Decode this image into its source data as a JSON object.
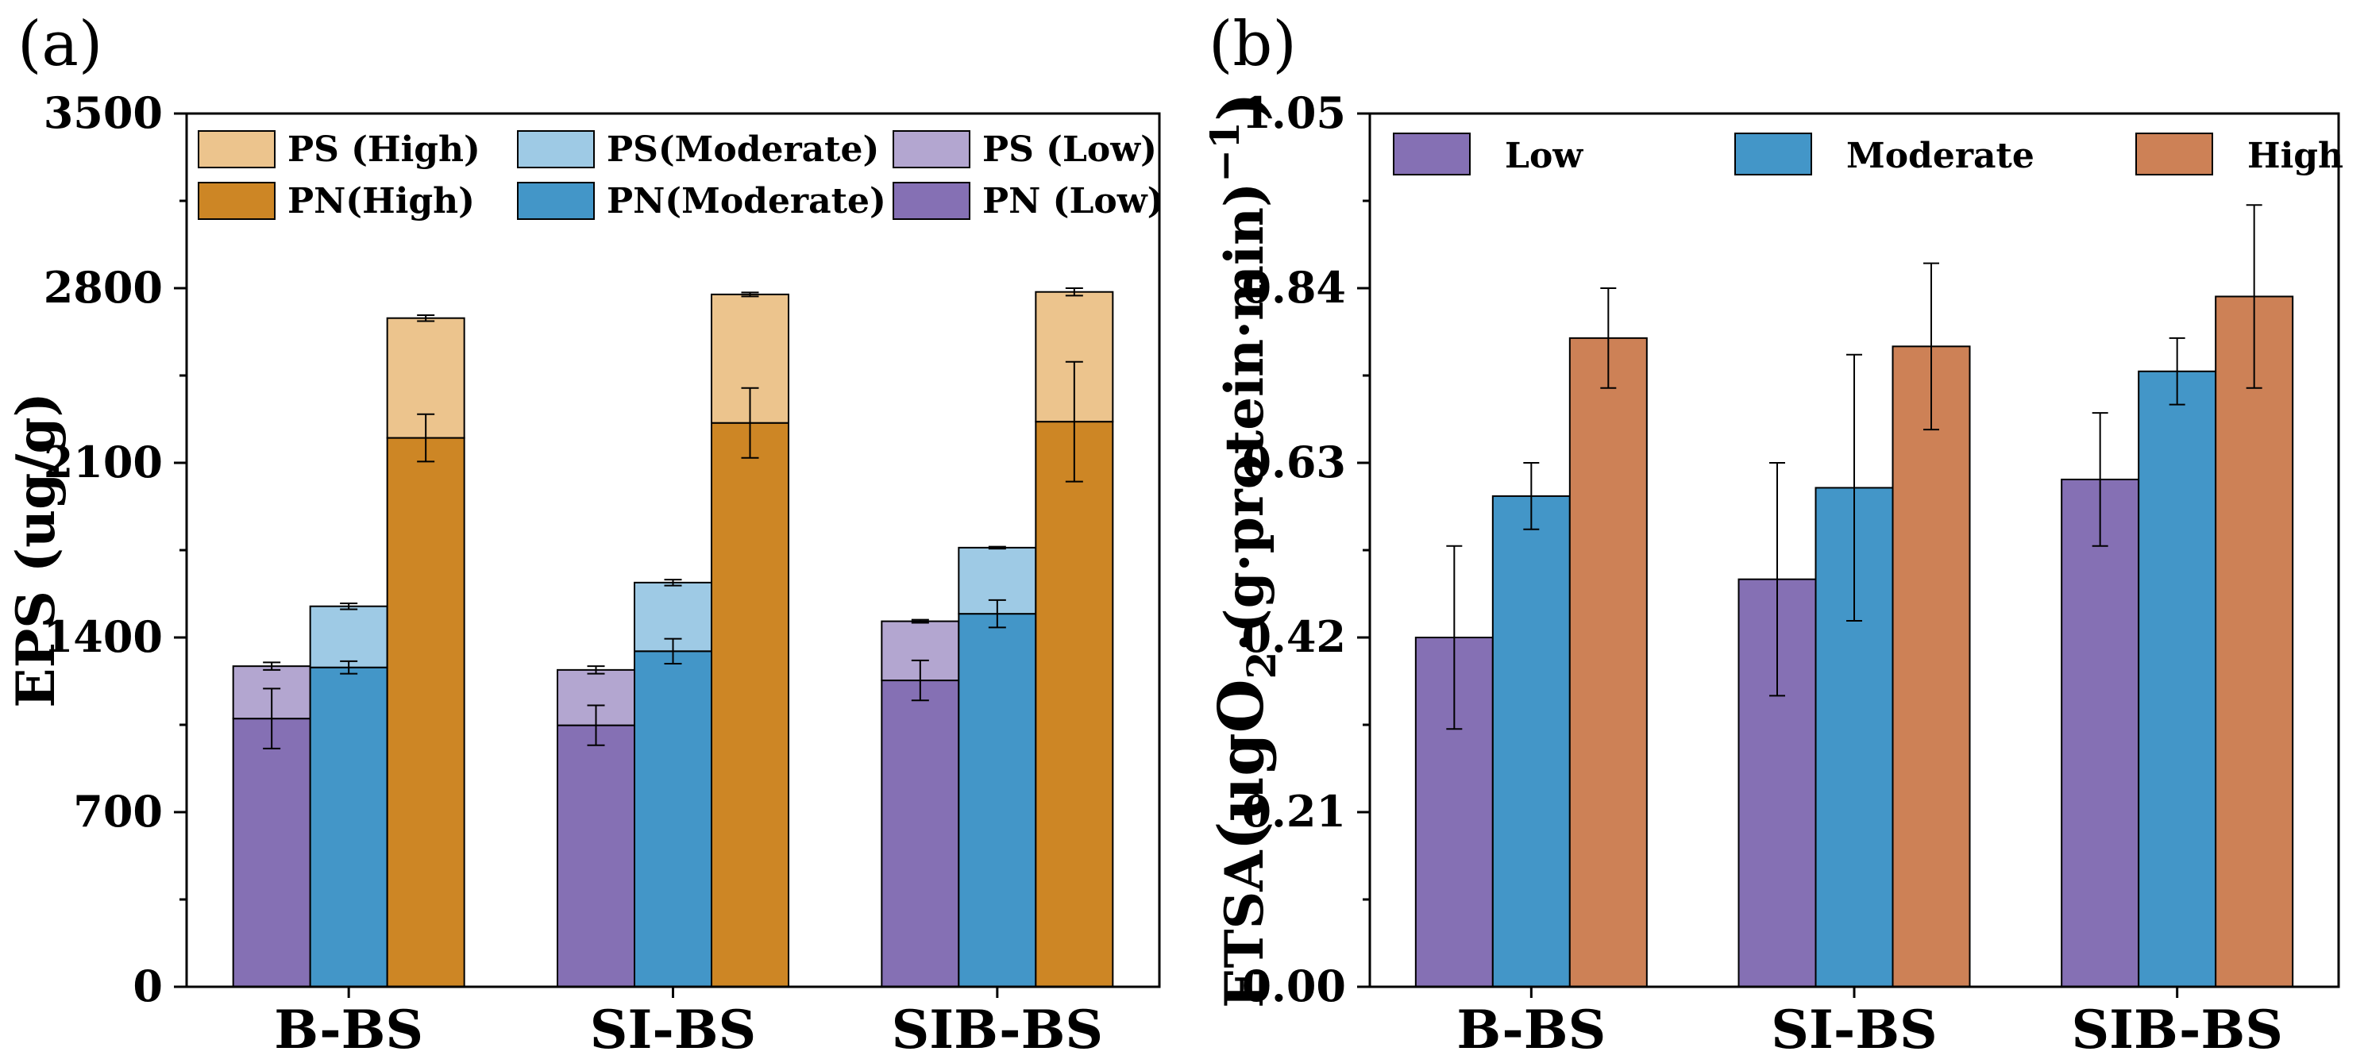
{
  "chart_data": [
    {
      "type": "bar",
      "stacked": true,
      "panel_label": "(a)",
      "ylabel": "EPS (ug/g)",
      "xlabel": "",
      "ylim": [
        0,
        3500
      ],
      "yticks": [
        0,
        700,
        1400,
        2100,
        2800,
        3500
      ],
      "categories": [
        "B-BS",
        "SI-BS",
        "SIB-BS"
      ],
      "legend": [
        "PS (High)",
        "PS(Moderate)",
        "PS (Low)",
        "PN(High)",
        "PN(Moderate)",
        "PN (Low)"
      ],
      "legend_position": "top",
      "groups": [
        {
          "name": "Low",
          "pn_label": "PN (Low)",
          "ps_label": "PS (Low)",
          "pn_color": "#8570b4",
          "ps_color": "#b3a6d0",
          "pn": [
            1075,
            1048,
            1228
          ],
          "pn_err": [
            120,
            80,
            80
          ],
          "total": [
            1285,
            1270,
            1465
          ],
          "total_err": [
            15,
            15,
            6
          ]
        },
        {
          "name": "Moderate",
          "pn_label": "PN(Moderate)",
          "ps_label": "PS(Moderate)",
          "pn_color": "#4396c8",
          "ps_color": "#9ecae5",
          "pn": [
            1280,
            1345,
            1495
          ],
          "pn_err": [
            25,
            50,
            55
          ],
          "total": [
            1525,
            1620,
            1760
          ],
          "total_err": [
            12,
            12,
            4
          ]
        },
        {
          "name": "High",
          "pn_label": "PN(High)",
          "ps_label": "PS (High)",
          "pn_color": "#cd8625",
          "ps_color": "#ecc48d",
          "pn": [
            2200,
            2260,
            2265
          ],
          "pn_err": [
            95,
            140,
            240
          ],
          "total": [
            2680,
            2775,
            2785
          ],
          "total_err": [
            12,
            8,
            15
          ]
        }
      ]
    },
    {
      "type": "bar",
      "panel_label": "(b)",
      "ylabel_prefix": "ETSA",
      "ylabel_main": "(ugO",
      "ylabel_sub": "2",
      "ylabel_mid": "·(g·protein·min)",
      "ylabel_sup": "−1",
      "ylabel_end": ")",
      "xlabel": "",
      "ylim": [
        0,
        1.05
      ],
      "yticks": [
        "0.00",
        "0.21",
        "0.42",
        "0.63",
        "0.84",
        "1.05"
      ],
      "categories": [
        "B-BS",
        "SI-BS",
        "SIB-BS"
      ],
      "legend": [
        "Low",
        "Moderate",
        "High"
      ],
      "legend_position": "top",
      "series": [
        {
          "name": "Low",
          "color": "#8570b4",
          "values": [
            0.42,
            0.49,
            0.61
          ],
          "err": [
            0.11,
            0.14,
            0.08
          ]
        },
        {
          "name": "Moderate",
          "color": "#4396c8",
          "values": [
            0.59,
            0.6,
            0.74
          ],
          "err": [
            0.04,
            0.16,
            0.04
          ]
        },
        {
          "name": "High",
          "color": "#cd8156",
          "values": [
            0.78,
            0.77,
            0.83
          ],
          "err": [
            0.06,
            0.1,
            0.11
          ]
        }
      ]
    }
  ]
}
